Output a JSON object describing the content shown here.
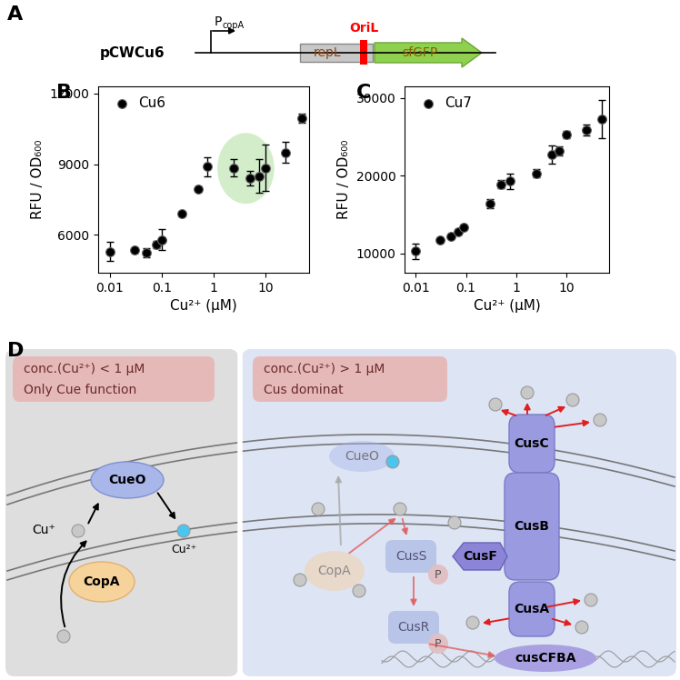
{
  "panel_labels": [
    "A",
    "B",
    "C",
    "D"
  ],
  "diagram_a": {
    "plasmid": "pCWCu6",
    "promoter": {
      "main": "P",
      "sub": "copA"
    },
    "elements": [
      "repL",
      "OriL",
      "sfGFP"
    ]
  },
  "chart_data": [
    {
      "type": "scatter",
      "xlabel": "Cu²⁺ (μM)",
      "ylabel": "RFU / OD₆₀₀",
      "log": "x",
      "grid": false,
      "legend": "upper left",
      "x": [
        0.01,
        0.03,
        0.05,
        0.08,
        0.1,
        0.25,
        0.5,
        0.75,
        2.5,
        5,
        7.5,
        10,
        25,
        50
      ],
      "xlim": [
        0.006,
        70
      ],
      "xticks": [
        0.01,
        0.1,
        1,
        10
      ],
      "ylim": [
        4400,
        12300
      ],
      "yticks": [
        6000,
        9000,
        12000
      ],
      "series": [
        {
          "name": "Cu6",
          "color": "#000000",
          "marker": "o",
          "values": [
            5300,
            5350,
            5250,
            5600,
            5800,
            6900,
            7950,
            8900,
            8850,
            8400,
            8500,
            8850,
            9500,
            10950
          ],
          "errors": [
            400,
            100,
            200,
            150,
            450,
            100,
            100,
            400,
            350,
            300,
            700,
            1000,
            450,
            200
          ]
        }
      ]
    },
    {
      "type": "scatter",
      "xlabel": "Cu²⁺ (μM)",
      "ylabel": "RFU / OD₆₀₀",
      "log": "x",
      "grid": false,
      "legend": "upper left",
      "x": [
        0.01,
        0.03,
        0.05,
        0.07,
        0.09,
        0.3,
        0.5,
        0.75,
        2.5,
        5,
        7,
        10,
        25,
        50
      ],
      "xlim": [
        0.006,
        70
      ],
      "xticks": [
        0.01,
        0.1,
        1,
        10
      ],
      "ylim": [
        7500,
        31500
      ],
      "yticks": [
        10000,
        20000,
        30000
      ],
      "series": [
        {
          "name": "Cu7",
          "color": "#000000",
          "marker": "o",
          "values": [
            10300,
            11700,
            12200,
            12800,
            13400,
            16400,
            18900,
            19300,
            20300,
            22700,
            23200,
            25300,
            25900,
            27300
          ],
          "errors": [
            1000,
            200,
            200,
            300,
            300,
            600,
            500,
            1000,
            500,
            1200,
            600,
            500,
            700,
            2500
          ]
        }
      ]
    }
  ],
  "diagram_d": {
    "left": {
      "header": [
        "conc.(Cu²⁺) < 1 μM",
        "Only Cue function"
      ],
      "nodes": [
        "CueO",
        "Cu⁺",
        "Cu²⁺",
        "CopA"
      ]
    },
    "right": {
      "header": [
        "conc.(Cu²⁺) > 1 μM",
        "Cus dominat"
      ],
      "nodes": [
        "CueO",
        "CopA",
        "CusS",
        "P",
        "CusR",
        "P",
        "CusF",
        "CusC",
        "CusB",
        "CusA",
        "cusCFBA"
      ]
    }
  }
}
